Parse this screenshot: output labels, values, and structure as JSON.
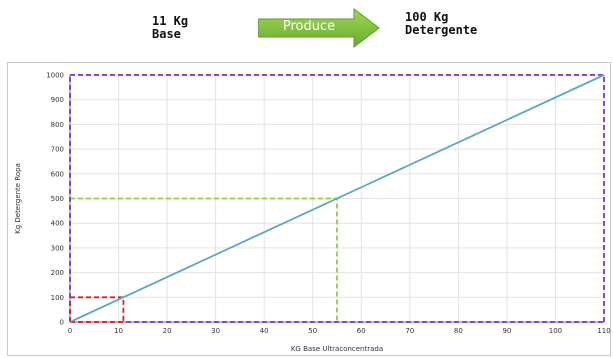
{
  "header": {
    "base_label": [
      "11 Kg",
      "Base"
    ],
    "arrow_label": "Produce",
    "detergente_label": [
      "100 Kg",
      "Detergente"
    ]
  },
  "chart_data": {
    "type": "line",
    "xlabel": "KG Base Ultraconcentrada",
    "ylabel": "Kg  Detergente Ropa",
    "xlim": [
      0,
      110
    ],
    "ylim": [
      0,
      1000
    ],
    "xticks": [
      0,
      10,
      20,
      30,
      40,
      50,
      60,
      70,
      80,
      90,
      100,
      110
    ],
    "yticks": [
      0,
      100,
      200,
      300,
      400,
      500,
      600,
      700,
      800,
      900,
      1000
    ],
    "grid": true,
    "series": [
      {
        "x": [
          0,
          110
        ],
        "y": [
          0,
          1000
        ],
        "color": "#5aa9c4"
      }
    ],
    "guides": [
      {
        "x": 110,
        "y": 1000,
        "color": "#7b2fd0"
      },
      {
        "x": 55,
        "y": 500,
        "color": "#8ecf3a"
      },
      {
        "x": 11,
        "y": 100,
        "color": "#e02020"
      }
    ]
  }
}
